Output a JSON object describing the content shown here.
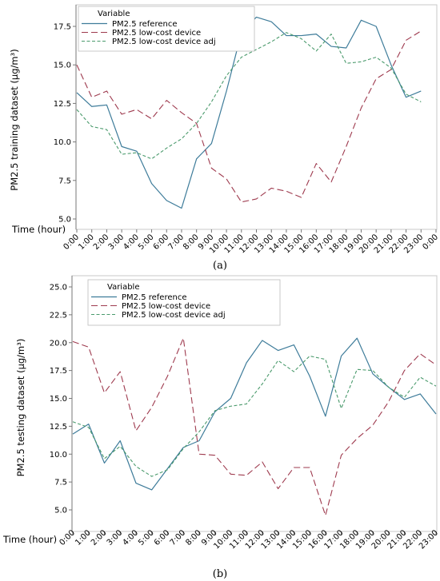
{
  "colors": {
    "reference": "#3e7c9a",
    "low_cost": "#9e3a4e",
    "adj": "#4a9a6c",
    "axis": "#777777",
    "plot_border": "#c8c8c8"
  },
  "chart_data": [
    {
      "type": "line",
      "caption": "(a)",
      "ylabel": "PM2.5 training dataset (μg/m³)",
      "xlabel": "Time (hour)",
      "ylim": [
        5.0,
        17.5
      ],
      "yticks": [
        "5.0",
        "7.5",
        "10.0",
        "12.5",
        "15.0",
        "17.5"
      ],
      "yticks_values": [
        5.0,
        7.5,
        10.0,
        12.5,
        15.0,
        17.5
      ],
      "categories": [
        "0:00",
        "1:00",
        "2:00",
        "3:00",
        "4:00",
        "5:00",
        "6:00",
        "7:00",
        "8:00",
        "9:00",
        "10:00",
        "11:00",
        "12:00",
        "13:00",
        "14:00",
        "15:00",
        "16:00",
        "17:00",
        "18:00",
        "19:00",
        "20:00",
        "21:00",
        "22:00",
        "23:00",
        "0:00"
      ],
      "legend_title": "Variable",
      "legend_position": "top-left",
      "series": [
        {
          "name": "PM2.5 reference",
          "style": "solid",
          "values": [
            13.2,
            12.3,
            12.4,
            9.7,
            9.4,
            7.3,
            6.2,
            5.7,
            8.9,
            9.9,
            13.3,
            17.1,
            18.1,
            17.8,
            16.9,
            16.9,
            17.0,
            16.2,
            16.1,
            17.9,
            17.5,
            15.0,
            12.9,
            13.3,
            null
          ]
        },
        {
          "name": "PM2.5 low-cost device",
          "style": "dashed",
          "values": [
            15.0,
            12.9,
            13.3,
            11.8,
            12.1,
            11.5,
            12.7,
            11.9,
            11.2,
            8.3,
            7.6,
            6.1,
            6.3,
            7.0,
            6.8,
            6.4,
            8.6,
            7.4,
            9.7,
            12.2,
            14.1,
            14.7,
            16.6,
            17.2,
            null
          ]
        },
        {
          "name": "PM2.5 low-cost device adj",
          "style": "dotted",
          "values": [
            12.1,
            11.0,
            10.8,
            9.2,
            9.3,
            8.9,
            9.6,
            10.2,
            11.2,
            12.6,
            14.3,
            15.5,
            16.0,
            16.5,
            17.1,
            16.7,
            15.9,
            17.0,
            15.1,
            15.2,
            15.5,
            14.8,
            13.1,
            12.6,
            null
          ]
        }
      ]
    },
    {
      "type": "line",
      "caption": "(b)",
      "ylabel": "PM2.5 testing dataset (μg/m³)",
      "xlabel": "Time (hour)",
      "ylim": [
        5.0,
        25.0
      ],
      "yticks": [
        "5.0",
        "7.5",
        "10.0",
        "12.5",
        "15.0",
        "17.5",
        "20.0",
        "22.5",
        "25.0"
      ],
      "yticks_values": [
        5.0,
        7.5,
        10.0,
        12.5,
        15.0,
        17.5,
        20.0,
        22.5,
        25.0
      ],
      "categories": [
        "0:00",
        "1:00",
        "2:00",
        "3:00",
        "4:00",
        "5:00",
        "6:00",
        "7:00",
        "8:00",
        "9:00",
        "10:00",
        "11:00",
        "12:00",
        "13:00",
        "14:00",
        "15:00",
        "16:00",
        "17:00",
        "18:00",
        "19:00",
        "20:00",
        "21:00",
        "22:00",
        "23:00"
      ],
      "legend_title": "Variable",
      "legend_position": "top-left",
      "series": [
        {
          "name": "PM2.5 reference",
          "style": "solid",
          "values": [
            11.8,
            12.7,
            9.2,
            11.2,
            7.4,
            6.8,
            8.7,
            10.6,
            11.2,
            13.8,
            15.0,
            18.2,
            20.2,
            19.3,
            19.8,
            17.0,
            13.4,
            18.8,
            20.4,
            17.2,
            16.0,
            14.9,
            15.4,
            13.6
          ]
        },
        {
          "name": "PM2.5 low-cost device",
          "style": "dashed",
          "values": [
            20.1,
            19.6,
            15.5,
            17.4,
            12.1,
            14.2,
            17.0,
            20.4,
            10.0,
            9.9,
            8.2,
            8.1,
            9.3,
            6.9,
            8.8,
            8.8,
            4.5,
            9.9,
            11.4,
            12.6,
            14.7,
            17.5,
            19.0,
            18.0
          ]
        },
        {
          "name": "PM2.5 low-cost device adj",
          "style": "dotted",
          "values": [
            12.9,
            12.4,
            9.6,
            10.7,
            8.9,
            8.0,
            8.6,
            10.5,
            12.0,
            13.9,
            14.3,
            14.5,
            16.3,
            18.4,
            17.4,
            18.8,
            18.5,
            14.1,
            17.6,
            17.5,
            16.0,
            15.1,
            16.9,
            16.1
          ]
        }
      ]
    }
  ]
}
